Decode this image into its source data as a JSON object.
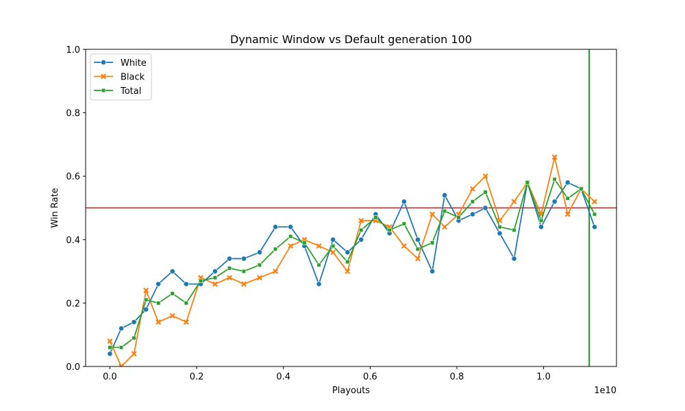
{
  "chart_data": {
    "type": "line",
    "title": "Dynamic Window vs Default generation 100",
    "xlabel": "Playouts",
    "ylabel": "Win Rate",
    "x_offset_label": "1e10",
    "xlim": [
      -0.056,
      1.168
    ],
    "ylim": [
      0,
      1
    ],
    "xticks": [
      0.0,
      0.2,
      0.4,
      0.6,
      0.8,
      1.0
    ],
    "xtick_labels": [
      "0.0",
      "0.2",
      "0.4",
      "0.6",
      "0.8",
      "1.0"
    ],
    "yticks": [
      0.0,
      0.2,
      0.4,
      0.6,
      0.8,
      1.0
    ],
    "ytick_labels": [
      "0.0",
      "0.2",
      "0.4",
      "0.6",
      "0.8",
      "1.0"
    ],
    "grid": false,
    "legend_position": "upper-left",
    "x": [
      0.0,
      0.0262,
      0.0555,
      0.0833,
      0.1117,
      0.1442,
      0.1759,
      0.2093,
      0.2424,
      0.2757,
      0.3088,
      0.3452,
      0.3816,
      0.4165,
      0.4484,
      0.4819,
      0.5144,
      0.5477,
      0.5792,
      0.6127,
      0.6447,
      0.6782,
      0.7098,
      0.7433,
      0.7718,
      0.8039,
      0.8362,
      0.8657,
      0.8988,
      0.9319,
      0.9625,
      0.9943,
      1.0253,
      1.0555,
      1.0865,
      1.1174
    ],
    "series": [
      {
        "name": "White",
        "color": "#1f77b4",
        "marker": "circle",
        "values": [
          0.04,
          0.12,
          0.14,
          0.18,
          0.26,
          0.3,
          0.26,
          0.26,
          0.3,
          0.34,
          0.34,
          0.36,
          0.44,
          0.44,
          0.38,
          0.26,
          0.4,
          0.36,
          0.4,
          0.48,
          0.42,
          0.52,
          0.4,
          0.3,
          0.54,
          0.46,
          0.48,
          0.5,
          0.42,
          0.34,
          0.58,
          0.44,
          0.52,
          0.58,
          0.56,
          0.44
        ]
      },
      {
        "name": "Black",
        "color": "#ff7f0e",
        "marker": "x",
        "values": [
          0.08,
          0.0,
          0.04,
          0.24,
          0.14,
          0.16,
          0.14,
          0.28,
          0.26,
          0.28,
          0.26,
          0.28,
          0.3,
          0.38,
          0.4,
          0.38,
          0.36,
          0.3,
          0.46,
          0.46,
          0.44,
          0.38,
          0.34,
          0.48,
          0.44,
          0.48,
          0.56,
          0.6,
          0.46,
          0.52,
          0.58,
          0.48,
          0.66,
          0.48,
          0.56,
          0.52
        ]
      },
      {
        "name": "Total",
        "color": "#2ca02c",
        "marker": "square",
        "values": [
          0.06,
          0.06,
          0.09,
          0.21,
          0.2,
          0.23,
          0.2,
          0.27,
          0.28,
          0.31,
          0.3,
          0.32,
          0.37,
          0.41,
          0.39,
          0.32,
          0.38,
          0.33,
          0.43,
          0.47,
          0.43,
          0.45,
          0.37,
          0.39,
          0.49,
          0.47,
          0.52,
          0.55,
          0.44,
          0.43,
          0.58,
          0.46,
          0.59,
          0.53,
          0.56,
          0.48
        ]
      }
    ],
    "reference_lines": [
      {
        "orientation": "horizontal",
        "value": 0.5,
        "color": "#ff0000"
      },
      {
        "orientation": "vertical",
        "value": 1.105,
        "color": "#008000"
      }
    ]
  }
}
